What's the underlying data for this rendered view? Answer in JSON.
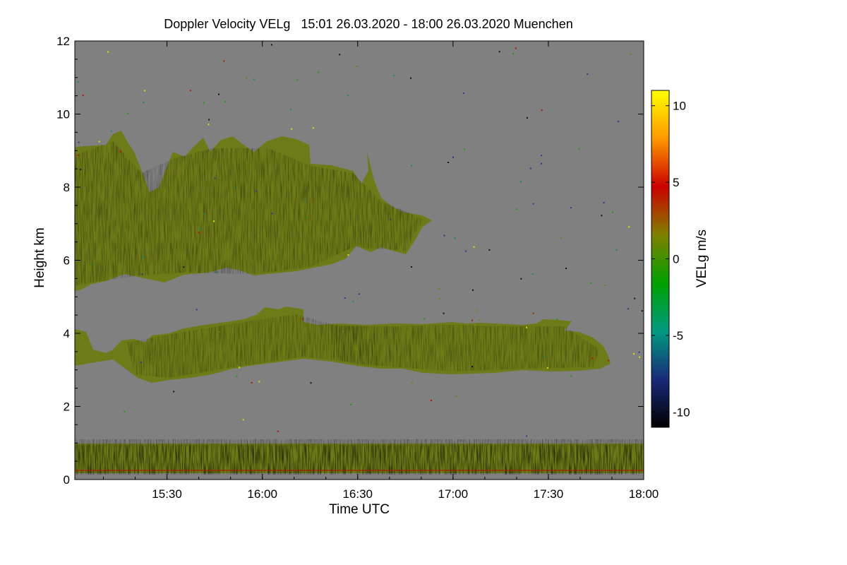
{
  "chart_data": {
    "type": "heatmap",
    "title": "Doppler Velocity VELg   15:01 26.03.2020 - 18:00 26.03.2020 Muenchen",
    "xlabel": "Time UTC",
    "ylabel": "Height km",
    "colorbar_label": "VELg m/s",
    "xlim": [
      "15:01",
      "18:00"
    ],
    "x_tick_labels": [
      "15:30",
      "16:00",
      "16:30",
      "17:00",
      "17:30",
      "18:00"
    ],
    "ylim": [
      0,
      12
    ],
    "y_tick_labels": [
      "0",
      "2",
      "4",
      "6",
      "8",
      "10",
      "12"
    ],
    "clim": [
      -11,
      11
    ],
    "colorbar_tick_labels": [
      "10",
      "5",
      "0",
      "-5",
      "-10"
    ],
    "colorscale": [
      "#000000",
      "#1a2a7a",
      "#009a80",
      "#00a000",
      "#808000",
      "#cc0000",
      "#ff9900",
      "#ffff00"
    ],
    "background_color": "#808080",
    "cloud_layers": [
      {
        "layer": "upper",
        "time_start": "15:01",
        "time_end": "16:55",
        "base_km_min": 5.1,
        "top_km_max": 9.4,
        "velocity_ms_range": [
          -3,
          1
        ]
      },
      {
        "layer": "middle",
        "time_start": "15:01",
        "time_end": "17:50",
        "base_km_min": 2.7,
        "top_km_max": 4.7,
        "velocity_ms_range": [
          -3,
          2
        ]
      },
      {
        "layer": "near-surface",
        "time_start": "15:01",
        "time_end": "18:00",
        "base_km_min": 0.1,
        "top_km_max": 1.0,
        "velocity_ms_range": [
          -3,
          3
        ]
      }
    ]
  }
}
